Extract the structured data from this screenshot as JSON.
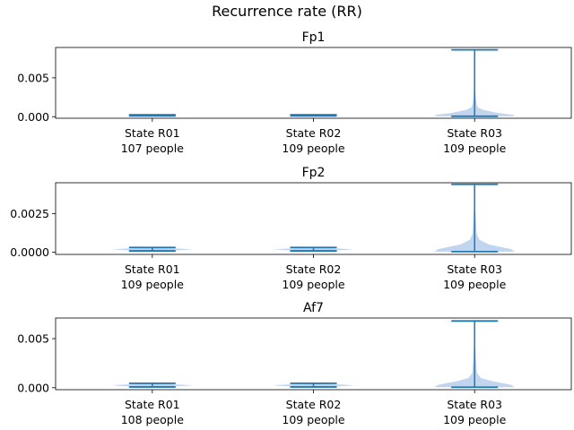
{
  "suptitle": "Recurrence rate (RR)",
  "colors": {
    "body": "#1f77b4",
    "fill": "#aec7e8",
    "axis": "#000000"
  },
  "chart_data": [
    {
      "type": "violin",
      "title": "Fp1",
      "ylim": [
        -0.0002,
        0.0089
      ],
      "yticks": [
        {
          "value": 0.0,
          "label": "0.000"
        },
        {
          "value": 0.005,
          "label": "0.005"
        }
      ],
      "groups": [
        {
          "label": "State R01",
          "sublabel": "107 people",
          "min": 0.00011,
          "max": 0.00024,
          "width": 0.3,
          "profile": [
            [
              0.00011,
              0.15
            ],
            [
              0.00016,
              0.8
            ],
            [
              0.00018,
              1.0
            ],
            [
              0.00021,
              0.6
            ],
            [
              0.00024,
              0.1
            ]
          ]
        },
        {
          "label": "State R02",
          "sublabel": "109 people",
          "min": 0.00011,
          "max": 0.00025,
          "width": 0.3,
          "profile": [
            [
              0.00011,
              0.15
            ],
            [
              0.00016,
              0.8
            ],
            [
              0.00018,
              1.0
            ],
            [
              0.00021,
              0.6
            ],
            [
              0.00025,
              0.1
            ]
          ]
        },
        {
          "label": "State R03",
          "sublabel": "109 people",
          "min": 5e-05,
          "max": 0.0086,
          "width": 0.5,
          "profile": [
            [
              5e-05,
              0.95
            ],
            [
              0.0002,
              1.0
            ],
            [
              0.0005,
              0.55
            ],
            [
              0.0009,
              0.2
            ],
            [
              0.0012,
              0.08
            ],
            [
              0.0016,
              0.05
            ],
            [
              0.003,
              0.02
            ],
            [
              0.006,
              0.01
            ],
            [
              0.0086,
              0.0
            ]
          ]
        }
      ]
    },
    {
      "type": "violin",
      "title": "Fp2",
      "ylim": [
        -0.00015,
        0.0045
      ],
      "yticks": [
        {
          "value": 0.0,
          "label": "0.0000"
        },
        {
          "value": 0.0025,
          "label": "0.0025"
        }
      ],
      "groups": [
        {
          "label": "State R01",
          "sublabel": "109 people",
          "min": 8e-05,
          "max": 0.0003,
          "width": 0.5,
          "profile": [
            [
              8e-05,
              0.25
            ],
            [
              0.00014,
              0.8
            ],
            [
              0.00018,
              1.0
            ],
            [
              0.00024,
              0.55
            ],
            [
              0.0003,
              0.1
            ]
          ]
        },
        {
          "label": "State R02",
          "sublabel": "109 people",
          "min": 8e-05,
          "max": 0.0003,
          "width": 0.5,
          "profile": [
            [
              8e-05,
              0.25
            ],
            [
              0.00014,
              0.8
            ],
            [
              0.00018,
              1.0
            ],
            [
              0.00024,
              0.55
            ],
            [
              0.0003,
              0.1
            ]
          ]
        },
        {
          "label": "State R03",
          "sublabel": "109 people",
          "min": 3e-05,
          "max": 0.0044,
          "width": 0.5,
          "profile": [
            [
              3e-05,
              1.0
            ],
            [
              0.0002,
              0.9
            ],
            [
              0.0005,
              0.35
            ],
            [
              0.0008,
              0.12
            ],
            [
              0.0012,
              0.05
            ],
            [
              0.0022,
              0.03
            ],
            [
              0.003,
              0.01
            ],
            [
              0.0044,
              0.0
            ]
          ]
        }
      ]
    },
    {
      "type": "violin",
      "title": "Af7",
      "ylim": [
        -0.0002,
        0.0071
      ],
      "yticks": [
        {
          "value": 0.0,
          "label": "0.000"
        },
        {
          "value": 0.005,
          "label": "0.005"
        }
      ],
      "groups": [
        {
          "label": "State R01",
          "sublabel": "108 people",
          "min": 8e-05,
          "max": 0.00045,
          "width": 0.5,
          "profile": [
            [
              8e-05,
              0.2
            ],
            [
              0.0002,
              0.9
            ],
            [
              0.00026,
              1.0
            ],
            [
              0.00035,
              0.5
            ],
            [
              0.00045,
              0.1
            ]
          ]
        },
        {
          "label": "State R02",
          "sublabel": "109 people",
          "min": 8e-05,
          "max": 0.00045,
          "width": 0.5,
          "profile": [
            [
              8e-05,
              0.2
            ],
            [
              0.0002,
              0.9
            ],
            [
              0.00026,
              1.0
            ],
            [
              0.00035,
              0.5
            ],
            [
              0.00045,
              0.1
            ]
          ]
        },
        {
          "label": "State R03",
          "sublabel": "109 people",
          "min": 5e-05,
          "max": 0.0068,
          "width": 0.5,
          "profile": [
            [
              5e-05,
              1.0
            ],
            [
              0.0003,
              0.9
            ],
            [
              0.0007,
              0.4
            ],
            [
              0.001,
              0.15
            ],
            [
              0.0015,
              0.06
            ],
            [
              0.003,
              0.03
            ],
            [
              0.005,
              0.01
            ],
            [
              0.0068,
              0.0
            ]
          ]
        }
      ]
    }
  ]
}
